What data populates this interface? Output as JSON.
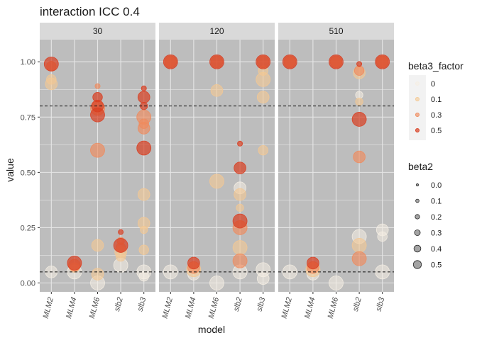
{
  "chart_data": {
    "type": "scatter",
    "title": "interaction ICC 0.4",
    "xlabel": "model",
    "ylabel": "value",
    "ylim": [
      -0.04,
      1.1
    ],
    "yticks": [
      0.0,
      0.25,
      0.5,
      0.75,
      1.0
    ],
    "ytick_labels": [
      "0.00",
      "0.25",
      "0.50",
      "0.75",
      "1.00"
    ],
    "categories": [
      "MLM2",
      "MLM4",
      "MLM6",
      "slb2",
      "slb3"
    ],
    "reference_lines": [
      0.05,
      0.8
    ],
    "grid": true,
    "legend_position": "right",
    "colors": {
      "panel_bg": "#bdbdbd",
      "strip_bg": "#d9d9d9",
      "grid": "#e6e6e6",
      "beta3_0": "#f5eee3",
      "beta3_0.1": "#f4c892",
      "beta3_0.3": "#ef8a5c",
      "beta3_0.5": "#d93d20"
    },
    "legends": [
      {
        "title": "beta3_factor",
        "items": [
          "0",
          "0.1",
          "0.3",
          "0.5"
        ]
      },
      {
        "title": "beta2",
        "items": [
          "0.0",
          "0.1",
          "0.2",
          "0.3",
          "0.4",
          "0.5"
        ]
      }
    ],
    "facets": [
      {
        "label": "30",
        "points": [
          {
            "x": "MLM2",
            "y": 0.05,
            "beta2": 0.4,
            "beta3": "0"
          },
          {
            "x": "MLM2",
            "y": 0.9,
            "beta2": 0.4,
            "beta3": "0.1"
          },
          {
            "x": "MLM2",
            "y": 0.92,
            "beta2": 0.3,
            "beta3": "0.1"
          },
          {
            "x": "MLM2",
            "y": 0.98,
            "beta2": 0.3,
            "beta3": "0.3"
          },
          {
            "x": "MLM2",
            "y": 0.99,
            "beta2": 0.5,
            "beta3": "0.5"
          },
          {
            "x": "MLM4",
            "y": 0.05,
            "beta2": 0.5,
            "beta3": "0"
          },
          {
            "x": "MLM4",
            "y": 0.07,
            "beta2": 0.3,
            "beta3": "0.1"
          },
          {
            "x": "MLM4",
            "y": 0.08,
            "beta2": 0.4,
            "beta3": "0.3"
          },
          {
            "x": "MLM4",
            "y": 0.09,
            "beta2": 0.5,
            "beta3": "0.5"
          },
          {
            "x": "MLM6",
            "y": 0.0,
            "beta2": 0.5,
            "beta3": "0"
          },
          {
            "x": "MLM6",
            "y": 0.04,
            "beta2": 0.4,
            "beta3": "0.1"
          },
          {
            "x": "MLM6",
            "y": 0.17,
            "beta2": 0.4,
            "beta3": "0.1"
          },
          {
            "x": "MLM6",
            "y": 0.6,
            "beta2": 0.5,
            "beta3": "0.3"
          },
          {
            "x": "MLM6",
            "y": 0.79,
            "beta2": 0.5,
            "beta3": "0.3"
          },
          {
            "x": "MLM6",
            "y": 0.89,
            "beta2": 0.1,
            "beta3": "0.3"
          },
          {
            "x": "MLM6",
            "y": 0.76,
            "beta2": 0.5,
            "beta3": "0.5"
          },
          {
            "x": "MLM6",
            "y": 0.8,
            "beta2": 0.4,
            "beta3": "0.5"
          },
          {
            "x": "MLM6",
            "y": 0.84,
            "beta2": 0.3,
            "beta3": "0.5"
          },
          {
            "x": "slb2",
            "y": 0.08,
            "beta2": 0.5,
            "beta3": "0"
          },
          {
            "x": "slb2",
            "y": 0.12,
            "beta2": 0.3,
            "beta3": "0.1"
          },
          {
            "x": "slb2",
            "y": 0.14,
            "beta2": 0.4,
            "beta3": "0.1"
          },
          {
            "x": "slb2",
            "y": 0.16,
            "beta2": 0.3,
            "beta3": "0.3"
          },
          {
            "x": "slb2",
            "y": 0.19,
            "beta2": 0.2,
            "beta3": "0.3"
          },
          {
            "x": "slb2",
            "y": 0.17,
            "beta2": 0.5,
            "beta3": "0.5"
          },
          {
            "x": "slb2",
            "y": 0.23,
            "beta2": 0.1,
            "beta3": "0.5"
          },
          {
            "x": "slb3",
            "y": 0.05,
            "beta2": 0.5,
            "beta3": "0"
          },
          {
            "x": "slb3",
            "y": 0.03,
            "beta2": 0.3,
            "beta3": "0"
          },
          {
            "x": "slb3",
            "y": 0.15,
            "beta2": 0.3,
            "beta3": "0.1"
          },
          {
            "x": "slb3",
            "y": 0.24,
            "beta2": 0.2,
            "beta3": "0.1"
          },
          {
            "x": "slb3",
            "y": 0.27,
            "beta2": 0.4,
            "beta3": "0.1"
          },
          {
            "x": "slb3",
            "y": 0.4,
            "beta2": 0.4,
            "beta3": "0.1"
          },
          {
            "x": "slb3",
            "y": 0.7,
            "beta2": 0.4,
            "beta3": "0.3"
          },
          {
            "x": "slb3",
            "y": 0.72,
            "beta2": 0.3,
            "beta3": "0.3"
          },
          {
            "x": "slb3",
            "y": 0.75,
            "beta2": 0.5,
            "beta3": "0.3"
          },
          {
            "x": "slb3",
            "y": 0.61,
            "beta2": 0.5,
            "beta3": "0.5"
          },
          {
            "x": "slb3",
            "y": 0.8,
            "beta2": 0.2,
            "beta3": "0.5"
          },
          {
            "x": "slb3",
            "y": 0.84,
            "beta2": 0.4,
            "beta3": "0.5"
          },
          {
            "x": "slb3",
            "y": 0.88,
            "beta2": 0.1,
            "beta3": "0.5"
          }
        ]
      },
      {
        "label": "120",
        "points": [
          {
            "x": "MLM2",
            "y": 0.05,
            "beta2": 0.5,
            "beta3": "0"
          },
          {
            "x": "MLM2",
            "y": 1.0,
            "beta2": 0.3,
            "beta3": "0.1"
          },
          {
            "x": "MLM2",
            "y": 1.0,
            "beta2": 0.4,
            "beta3": "0.3"
          },
          {
            "x": "MLM2",
            "y": 1.0,
            "beta2": 0.5,
            "beta3": "0.5"
          },
          {
            "x": "MLM4",
            "y": 0.04,
            "beta2": 0.4,
            "beta3": "0"
          },
          {
            "x": "MLM4",
            "y": 0.06,
            "beta2": 0.5,
            "beta3": "0.1"
          },
          {
            "x": "MLM4",
            "y": 0.07,
            "beta2": 0.4,
            "beta3": "0.3"
          },
          {
            "x": "MLM4",
            "y": 0.09,
            "beta2": 0.4,
            "beta3": "0.5"
          },
          {
            "x": "MLM6",
            "y": 0.0,
            "beta2": 0.5,
            "beta3": "0"
          },
          {
            "x": "MLM6",
            "y": 0.46,
            "beta2": 0.5,
            "beta3": "0.1"
          },
          {
            "x": "MLM6",
            "y": 0.87,
            "beta2": 0.4,
            "beta3": "0.1"
          },
          {
            "x": "MLM6",
            "y": 1.0,
            "beta2": 0.4,
            "beta3": "0.3"
          },
          {
            "x": "MLM6",
            "y": 1.0,
            "beta2": 0.5,
            "beta3": "0.5"
          },
          {
            "x": "slb2",
            "y": 0.05,
            "beta2": 0.5,
            "beta3": "0"
          },
          {
            "x": "slb2",
            "y": 0.43,
            "beta2": 0.4,
            "beta3": "0"
          },
          {
            "x": "slb2",
            "y": 0.16,
            "beta2": 0.5,
            "beta3": "0.1"
          },
          {
            "x": "slb2",
            "y": 0.34,
            "beta2": 0.2,
            "beta3": "0.1"
          },
          {
            "x": "slb2",
            "y": 0.4,
            "beta2": 0.4,
            "beta3": "0.1"
          },
          {
            "x": "slb2",
            "y": 0.1,
            "beta2": 0.5,
            "beta3": "0.3"
          },
          {
            "x": "slb2",
            "y": 0.25,
            "beta2": 0.5,
            "beta3": "0.3"
          },
          {
            "x": "slb2",
            "y": 0.28,
            "beta2": 0.5,
            "beta3": "0.5"
          },
          {
            "x": "slb2",
            "y": 0.52,
            "beta2": 0.4,
            "beta3": "0.5"
          },
          {
            "x": "slb2",
            "y": 0.63,
            "beta2": 0.1,
            "beta3": "0.5"
          },
          {
            "x": "slb3",
            "y": 0.02,
            "beta2": 0.4,
            "beta3": "0"
          },
          {
            "x": "slb3",
            "y": 0.06,
            "beta2": 0.5,
            "beta3": "0"
          },
          {
            "x": "slb3",
            "y": 0.6,
            "beta2": 0.3,
            "beta3": "0.1"
          },
          {
            "x": "slb3",
            "y": 0.84,
            "beta2": 0.4,
            "beta3": "0.1"
          },
          {
            "x": "slb3",
            "y": 0.92,
            "beta2": 0.5,
            "beta3": "0.1"
          },
          {
            "x": "slb3",
            "y": 0.96,
            "beta2": 0.3,
            "beta3": "0.1"
          },
          {
            "x": "slb3",
            "y": 1.0,
            "beta2": 0.4,
            "beta3": "0.3"
          },
          {
            "x": "slb3",
            "y": 1.0,
            "beta2": 0.5,
            "beta3": "0.5"
          }
        ]
      },
      {
        "label": "510",
        "points": [
          {
            "x": "MLM2",
            "y": 0.05,
            "beta2": 0.5,
            "beta3": "0"
          },
          {
            "x": "MLM2",
            "y": 1.0,
            "beta2": 0.3,
            "beta3": "0.1"
          },
          {
            "x": "MLM2",
            "y": 1.0,
            "beta2": 0.4,
            "beta3": "0.3"
          },
          {
            "x": "MLM2",
            "y": 1.0,
            "beta2": 0.5,
            "beta3": "0.5"
          },
          {
            "x": "MLM4",
            "y": 0.04,
            "beta2": 0.4,
            "beta3": "0"
          },
          {
            "x": "MLM4",
            "y": 0.06,
            "beta2": 0.5,
            "beta3": "0.1"
          },
          {
            "x": "MLM4",
            "y": 0.07,
            "beta2": 0.4,
            "beta3": "0.3"
          },
          {
            "x": "MLM4",
            "y": 0.09,
            "beta2": 0.4,
            "beta3": "0.5"
          },
          {
            "x": "MLM6",
            "y": 0.0,
            "beta2": 0.5,
            "beta3": "0"
          },
          {
            "x": "MLM6",
            "y": 1.0,
            "beta2": 0.3,
            "beta3": "0.1"
          },
          {
            "x": "MLM6",
            "y": 1.0,
            "beta2": 0.4,
            "beta3": "0.3"
          },
          {
            "x": "MLM6",
            "y": 1.0,
            "beta2": 0.5,
            "beta3": "0.5"
          },
          {
            "x": "slb2",
            "y": 0.21,
            "beta2": 0.5,
            "beta3": "0"
          },
          {
            "x": "slb2",
            "y": 0.85,
            "beta2": 0.2,
            "beta3": "0"
          },
          {
            "x": "slb2",
            "y": 0.17,
            "beta2": 0.5,
            "beta3": "0.1"
          },
          {
            "x": "slb2",
            "y": 0.82,
            "beta2": 0.2,
            "beta3": "0.1"
          },
          {
            "x": "slb2",
            "y": 0.95,
            "beta2": 0.4,
            "beta3": "0.1"
          },
          {
            "x": "slb2",
            "y": 0.11,
            "beta2": 0.5,
            "beta3": "0.3"
          },
          {
            "x": "slb2",
            "y": 0.57,
            "beta2": 0.4,
            "beta3": "0.3"
          },
          {
            "x": "slb2",
            "y": 0.96,
            "beta2": 0.3,
            "beta3": "0.3"
          },
          {
            "x": "slb2",
            "y": 0.74,
            "beta2": 0.5,
            "beta3": "0.5"
          },
          {
            "x": "slb2",
            "y": 0.99,
            "beta2": 0.1,
            "beta3": "0.5"
          },
          {
            "x": "slb3",
            "y": 0.05,
            "beta2": 0.5,
            "beta3": "0"
          },
          {
            "x": "slb3",
            "y": 0.21,
            "beta2": 0.3,
            "beta3": "0"
          },
          {
            "x": "slb3",
            "y": 0.24,
            "beta2": 0.4,
            "beta3": "0"
          },
          {
            "x": "slb3",
            "y": 1.0,
            "beta2": 0.3,
            "beta3": "0.1"
          },
          {
            "x": "slb3",
            "y": 1.0,
            "beta2": 0.4,
            "beta3": "0.3"
          },
          {
            "x": "slb3",
            "y": 1.0,
            "beta2": 0.5,
            "beta3": "0.5"
          }
        ]
      }
    ]
  }
}
